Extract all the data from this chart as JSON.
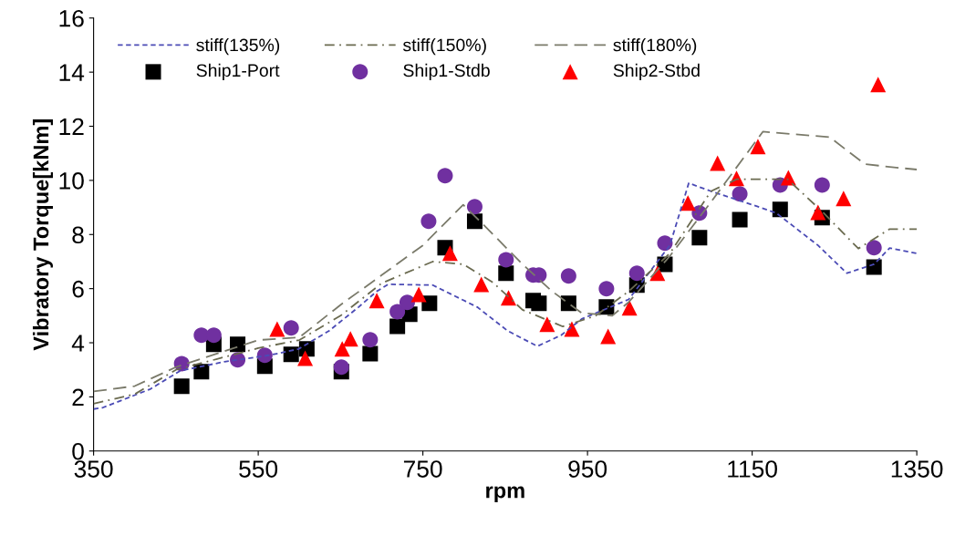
{
  "chart_data": {
    "type": "scatter",
    "xlabel": "rpm",
    "ylabel": "Vibratory Torque[kNm]",
    "xlim": [
      350,
      1350
    ],
    "ylim": [
      0,
      16
    ],
    "xticks": [
      350,
      550,
      750,
      950,
      1150,
      1350
    ],
    "yticks": [
      0,
      2,
      4,
      6,
      8,
      10,
      12,
      14,
      16
    ],
    "grid": false,
    "legend": "top left",
    "series": [
      {
        "name": "stiff(135%)",
        "type": "line",
        "marker": "none",
        "line_style": "dotted",
        "color": "#4b4bb5",
        "x": [
          350,
          361,
          419,
          455,
          509,
          564,
          599,
          636,
          672,
          694,
          708,
          762,
          816,
          853,
          889,
          918,
          943,
          1000,
          1050,
          1073,
          1100,
          1150,
          1179,
          1230,
          1265,
          1298,
          1317,
          1350
        ],
        "values": [
          1.55,
          1.6,
          2.29,
          2.96,
          3.3,
          3.54,
          3.77,
          4.44,
          5.32,
          5.9,
          6.16,
          6.13,
          5.32,
          4.44,
          3.87,
          4.28,
          4.88,
          5.6,
          7.6,
          9.9,
          9.6,
          9.1,
          8.8,
          7.6,
          6.57,
          6.9,
          7.5,
          7.3
        ]
      },
      {
        "name": "stiff(150%)",
        "type": "line",
        "marker": "none",
        "line_style": "dashdot",
        "color": "#6b6b50",
        "x": [
          350,
          400,
          450,
          500,
          550,
          600,
          650,
          700,
          762,
          799,
          835,
          871,
          920,
          960,
          1000,
          1050,
          1100,
          1131,
          1193,
          1236,
          1279,
          1317,
          1350
        ],
        "values": [
          1.75,
          2.1,
          3.0,
          3.4,
          3.8,
          4.1,
          5.0,
          6.2,
          7.0,
          6.9,
          6.23,
          5.22,
          4.6,
          5.0,
          5.9,
          7.3,
          9.6,
          10.04,
          10.04,
          8.82,
          7.48,
          8.2,
          8.2
        ]
      },
      {
        "name": "stiff(180%)",
        "type": "line",
        "marker": "none",
        "line_style": "dashed",
        "color": "#7a7a6a",
        "x": [
          350,
          400,
          450,
          500,
          550,
          600,
          650,
          700,
          750,
          799,
          824,
          871,
          907,
          943,
          980,
          1000,
          1050,
          1100,
          1163,
          1244,
          1287,
          1317,
          1350
        ],
        "values": [
          2.2,
          2.4,
          3.1,
          3.6,
          4.1,
          4.2,
          5.4,
          6.5,
          7.6,
          9.1,
          8.35,
          6.9,
          5.9,
          5.1,
          5.0,
          5.5,
          7.2,
          9.2,
          11.8,
          11.6,
          10.6,
          10.5,
          10.4
        ]
      },
      {
        "name": "Ship1-Port",
        "marker": "square",
        "color": "#000000",
        "x": [
          457,
          481,
          496,
          525,
          558,
          590,
          609,
          651,
          686,
          719,
          734,
          758,
          777,
          813,
          851,
          884,
          891,
          927,
          973,
          1010,
          1044,
          1086,
          1135,
          1184,
          1235,
          1298
        ],
        "values": [
          2.39,
          2.93,
          3.94,
          3.94,
          3.13,
          3.57,
          3.77,
          2.93,
          3.6,
          4.61,
          5.05,
          5.46,
          7.51,
          8.49,
          6.57,
          5.56,
          5.46,
          5.46,
          5.32,
          6.13,
          6.9,
          7.88,
          8.55,
          8.93,
          8.62,
          6.8
        ]
      },
      {
        "name": "Ship1-Stdb",
        "marker": "circle",
        "color": "#7030a0",
        "x": [
          457,
          481,
          496,
          525,
          558,
          590,
          651,
          686,
          719,
          731,
          757,
          777,
          813,
          851,
          884,
          891,
          927,
          973,
          1010,
          1044,
          1086,
          1135,
          1184,
          1235,
          1298
        ],
        "values": [
          3.23,
          4.28,
          4.28,
          3.37,
          3.54,
          4.55,
          3.1,
          4.11,
          5.15,
          5.49,
          8.49,
          10.17,
          9.03,
          7.07,
          6.5,
          6.5,
          6.47,
          6.0,
          6.57,
          7.68,
          8.79,
          9.5,
          9.83,
          9.83,
          7.51
        ]
      },
      {
        "name": "Ship2-Stbd",
        "marker": "triangle",
        "color": "#ff0000",
        "x": [
          573,
          607,
          652,
          662,
          694,
          745,
          783,
          821,
          854,
          901,
          931,
          975,
          1001,
          1035,
          1072,
          1108,
          1131,
          1157,
          1194,
          1230,
          1261,
          1303
        ],
        "values": [
          4.51,
          3.43,
          3.77,
          4.14,
          5.56,
          5.79,
          7.31,
          6.16,
          5.66,
          4.68,
          4.51,
          4.24,
          5.29,
          6.57,
          9.16,
          10.64,
          10.07,
          11.25,
          10.1,
          8.82,
          9.33,
          13.54
        ]
      }
    ]
  }
}
